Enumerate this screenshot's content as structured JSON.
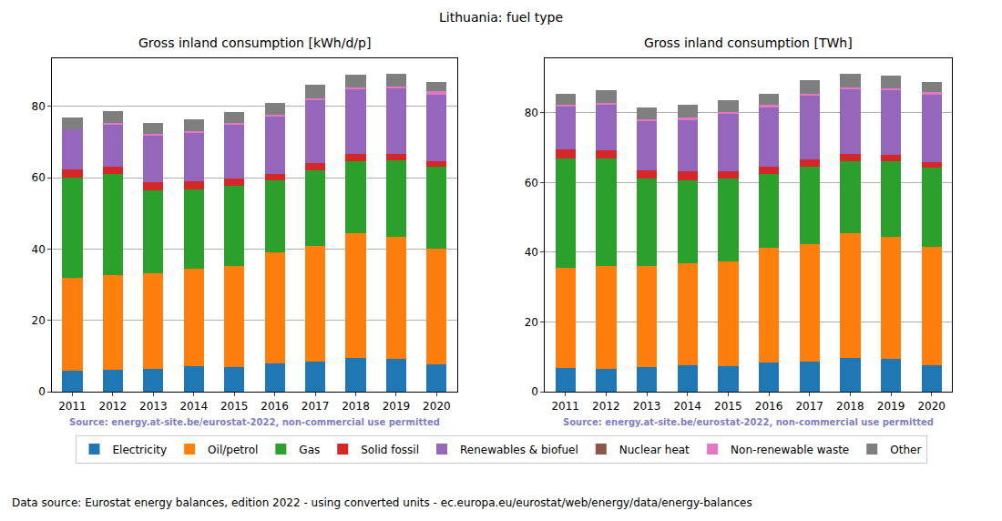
{
  "title": "Lithuania: fuel type",
  "footer": "Data source: Eurostat energy balances, edition 2022 - using converted units - ec.europa.eu/eurostat/web/energy/data/energy-balances",
  "legend": "bottom",
  "chart_data": [
    {
      "type": "bar",
      "stacked": true,
      "grid": true,
      "title": "Gross inland consumption [kWh/d/p]",
      "source": "Source: energy.at-site.be/eurostat-2022, non-commercial use permitted",
      "categories": [
        "2011",
        "2012",
        "2013",
        "2014",
        "2015",
        "2016",
        "2017",
        "2018",
        "2019",
        "2020"
      ],
      "ylim": [
        0,
        93.5
      ],
      "yticks": [
        0,
        20,
        40,
        60,
        80
      ],
      "series": [
        {
          "name": "Electricity",
          "color": "#1f77b4",
          "values": [
            6.0,
            6.1,
            6.4,
            7.1,
            6.9,
            7.9,
            8.4,
            9.4,
            9.2,
            7.6
          ]
        },
        {
          "name": "Oil/petrol",
          "color": "#ff7f0e",
          "values": [
            26.0,
            26.6,
            26.8,
            27.4,
            28.4,
            31.2,
            32.4,
            35.1,
            34.3,
            32.6
          ]
        },
        {
          "name": "Gas",
          "color": "#2ca02c",
          "values": [
            28.0,
            28.3,
            23.4,
            22.2,
            22.5,
            20.1,
            21.4,
            20.1,
            21.3,
            23.0
          ]
        },
        {
          "name": "Solid fossil",
          "color": "#d62728",
          "values": [
            2.3,
            2.2,
            2.3,
            2.4,
            1.9,
            1.8,
            1.9,
            2.0,
            1.9,
            1.5
          ]
        },
        {
          "name": "Renewables & biofuel",
          "color": "#9467bd",
          "values": [
            11.3,
            11.9,
            12.9,
            13.6,
            15.2,
            16.3,
            17.8,
            18.3,
            18.4,
            18.7
          ]
        },
        {
          "name": "Nuclear heat",
          "color": "#8c564b",
          "values": [
            0,
            0,
            0,
            0,
            0,
            0,
            0,
            0,
            0,
            0
          ]
        },
        {
          "name": "Non-renewable waste",
          "color": "#e377c2",
          "values": [
            0.1,
            0.2,
            0.4,
            0.4,
            0.4,
            0.5,
            0.5,
            0.5,
            0.5,
            0.9
          ]
        },
        {
          "name": "Other",
          "color": "#7f7f7f",
          "values": [
            3.1,
            3.5,
            3.3,
            3.4,
            3.2,
            3.2,
            3.7,
            3.5,
            3.6,
            2.5
          ]
        }
      ]
    },
    {
      "type": "bar",
      "stacked": true,
      "grid": true,
      "title": "Gross inland consumption [TWh]",
      "source": "Source: energy.at-site.be/eurostat-2022, non-commercial use permitted",
      "categories": [
        "2011",
        "2012",
        "2013",
        "2014",
        "2015",
        "2016",
        "2017",
        "2018",
        "2019",
        "2020"
      ],
      "ylim": [
        0,
        95.6
      ],
      "yticks": [
        0,
        20,
        40,
        60,
        80
      ],
      "series": [
        {
          "name": "Electricity",
          "color": "#1f77b4",
          "values": [
            6.8,
            6.6,
            7.1,
            7.6,
            7.4,
            8.3,
            8.6,
            9.7,
            9.4,
            7.7
          ]
        },
        {
          "name": "Oil/petrol",
          "color": "#ff7f0e",
          "values": [
            28.7,
            29.4,
            29.0,
            29.2,
            30.0,
            32.9,
            33.7,
            35.8,
            35.0,
            33.8
          ]
        },
        {
          "name": "Gas",
          "color": "#2ca02c",
          "values": [
            31.5,
            30.9,
            25.0,
            23.9,
            23.8,
            21.3,
            22.3,
            20.5,
            21.6,
            22.7
          ]
        },
        {
          "name": "Solid fossil",
          "color": "#d62728",
          "values": [
            2.5,
            2.4,
            2.5,
            2.5,
            2.0,
            2.0,
            2.0,
            2.1,
            2.0,
            1.6
          ]
        },
        {
          "name": "Renewables & biofuel",
          "color": "#9467bd",
          "values": [
            12.5,
            13.2,
            14.0,
            14.9,
            16.6,
            17.2,
            18.4,
            18.7,
            18.6,
            19.3
          ]
        },
        {
          "name": "Nuclear heat",
          "color": "#8c564b",
          "values": [
            0,
            0,
            0,
            0,
            0,
            0,
            0,
            0,
            0,
            0
          ]
        },
        {
          "name": "Non-renewable waste",
          "color": "#e377c2",
          "values": [
            0.2,
            0.2,
            0.5,
            0.5,
            0.5,
            0.5,
            0.5,
            0.5,
            0.5,
            0.9
          ]
        },
        {
          "name": "Other",
          "color": "#7f7f7f",
          "values": [
            3.3,
            3.8,
            3.5,
            3.6,
            3.4,
            3.3,
            3.9,
            3.8,
            3.6,
            2.9
          ]
        }
      ]
    }
  ]
}
